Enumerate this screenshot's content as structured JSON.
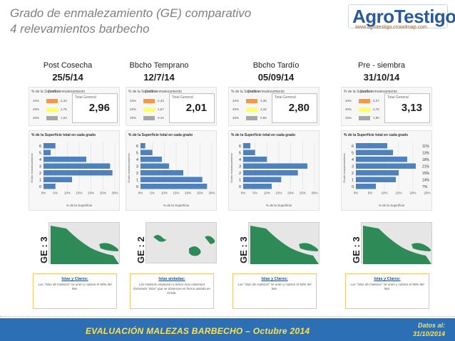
{
  "header": {
    "title_line1": "Grado de enmalezamiento (GE) comparativo",
    "title_line2": "4 relevamientos barbecho",
    "logo_text": "AgroTestigo",
    "logo_url": "www.agrotestigo.crowdmap.com"
  },
  "columns": [
    {
      "label": "Post Cosecha",
      "date": "25/5/14",
      "table_rows": [
        {
          "pct": "34%",
          "value": "2,33"
        },
        {
          "pct": "33%",
          "value": "2,75"
        },
        {
          "pct": "33%",
          "value": "1,53"
        }
      ],
      "total_label": "Total General",
      "total_value": "2,96",
      "ge_label": "GE : 3",
      "chart_title": "% de la Superficie total en cada grado",
      "x_axis_label": "% de la Superficie",
      "note_title": "Islas y Claros:",
      "note_body": "Las \"islas de malezas\" se unen y cubren el 50% del lote."
    },
    {
      "label": "Bbcho Temprano",
      "date": "12/7/14",
      "table_rows": [
        {
          "pct": "34%",
          "value": "2,43"
        },
        {
          "pct": "33%",
          "value": "1,67"
        },
        {
          "pct": "33%",
          "value": "0,44"
        }
      ],
      "total_label": "Total General",
      "total_value": "2,01",
      "ge_label": "GE : 2",
      "chart_title": "% de la Superficie total en cada grado",
      "x_axis_label": "% de la Superficie",
      "note_title": "Islas aisladas:",
      "note_body": "Las malezas empiezan a tomar mas cobertura formando \"islas\" que se observan en forma aislada en el lote."
    },
    {
      "label": "Bbcho Tardío",
      "date": "05/09/14",
      "table_rows": [
        {
          "pct": "34%",
          "value": "3,35"
        },
        {
          "pct": "33%",
          "value": "3,15"
        },
        {
          "pct": "33%",
          "value": "0,66"
        }
      ],
      "total_label": "Total General",
      "total_value": "2,80",
      "ge_label": "GE : 3",
      "chart_title": "% de la Superficie total en cada grado",
      "x_axis_label": "% de la Superficie",
      "note_title": "Islas y Claros:",
      "note_body": "Las \"islas de malezas\" se unen y cubren el 50% del lote."
    },
    {
      "label": "Pre - siembra",
      "date": "31/10/14",
      "table_rows": [
        {
          "pct": "34%",
          "value": "3,27"
        },
        {
          "pct": "33%",
          "value": "2,76"
        },
        {
          "pct": "33%",
          "value": "1,90"
        }
      ],
      "total_label": "Total General",
      "total_value": "3,13",
      "ge_label": "GE : 3",
      "chart_title": "% de la Superficie total en cada grado",
      "x_axis_label": "% de la Superficie",
      "note_title": "Islas y Claros:",
      "note_body": "Las \"islas de malezas\" se unen y cubren el 50% del lote."
    }
  ],
  "chart_data": [
    {
      "type": "bar",
      "orientation": "horizontal",
      "categories": [
        "6",
        "5",
        "4",
        "3",
        "2",
        "1",
        "0"
      ],
      "values": [
        5,
        3,
        18,
        28,
        29,
        12,
        5
      ],
      "x_ticks": [
        "0%",
        "5%",
        "10%",
        "15%",
        "20%",
        "25%",
        "30%"
      ],
      "xlim": [
        0,
        30
      ]
    },
    {
      "type": "bar",
      "orientation": "horizontal",
      "categories": [
        "6",
        "5",
        "4",
        "3",
        "2",
        "1",
        "0"
      ],
      "values": [
        2,
        5,
        9,
        12,
        18,
        26,
        28
      ],
      "x_ticks": [
        "0%",
        "5%",
        "10%",
        "15%",
        "20%",
        "25%",
        "30%"
      ],
      "xlim": [
        0,
        30
      ]
    },
    {
      "type": "bar",
      "orientation": "horizontal",
      "categories": [
        "6",
        "5",
        "4",
        "3",
        "2",
        "1",
        "0"
      ],
      "values": [
        3,
        5,
        10,
        27,
        23,
        16,
        12
      ],
      "x_ticks": [
        "0%",
        "5%",
        "10%",
        "15%",
        "20%",
        "25%",
        "30%"
      ],
      "xlim": [
        0,
        30
      ]
    },
    {
      "type": "bar",
      "orientation": "horizontal",
      "categories": [
        "6",
        "5",
        "4",
        "3",
        "2",
        "1",
        "0"
      ],
      "values": [
        11,
        13,
        18,
        21,
        15,
        14,
        7
      ],
      "data_labels": [
        "11%",
        "13%",
        "18%",
        "21%",
        "15%",
        "14%",
        "7%"
      ],
      "x_ticks": [
        "0%",
        "5%",
        "10%",
        "15%",
        "20%",
        "25%"
      ],
      "xlim": [
        0,
        25
      ]
    }
  ],
  "footer": {
    "title": "EVALUACIÓN MALEZAS BARBECHO – Octubre 2014",
    "datos_line1": "Datos al:",
    "datos_line2": "31/10/2014"
  },
  "colors": {
    "bar": "#4f81bd",
    "footer_bg": "#2c6fb4",
    "footer_text": "#ffe24d",
    "orange": "#f79646",
    "yellow": "#ffff66",
    "gray": "#a6a6a6",
    "map_green": "#2e8b57"
  }
}
